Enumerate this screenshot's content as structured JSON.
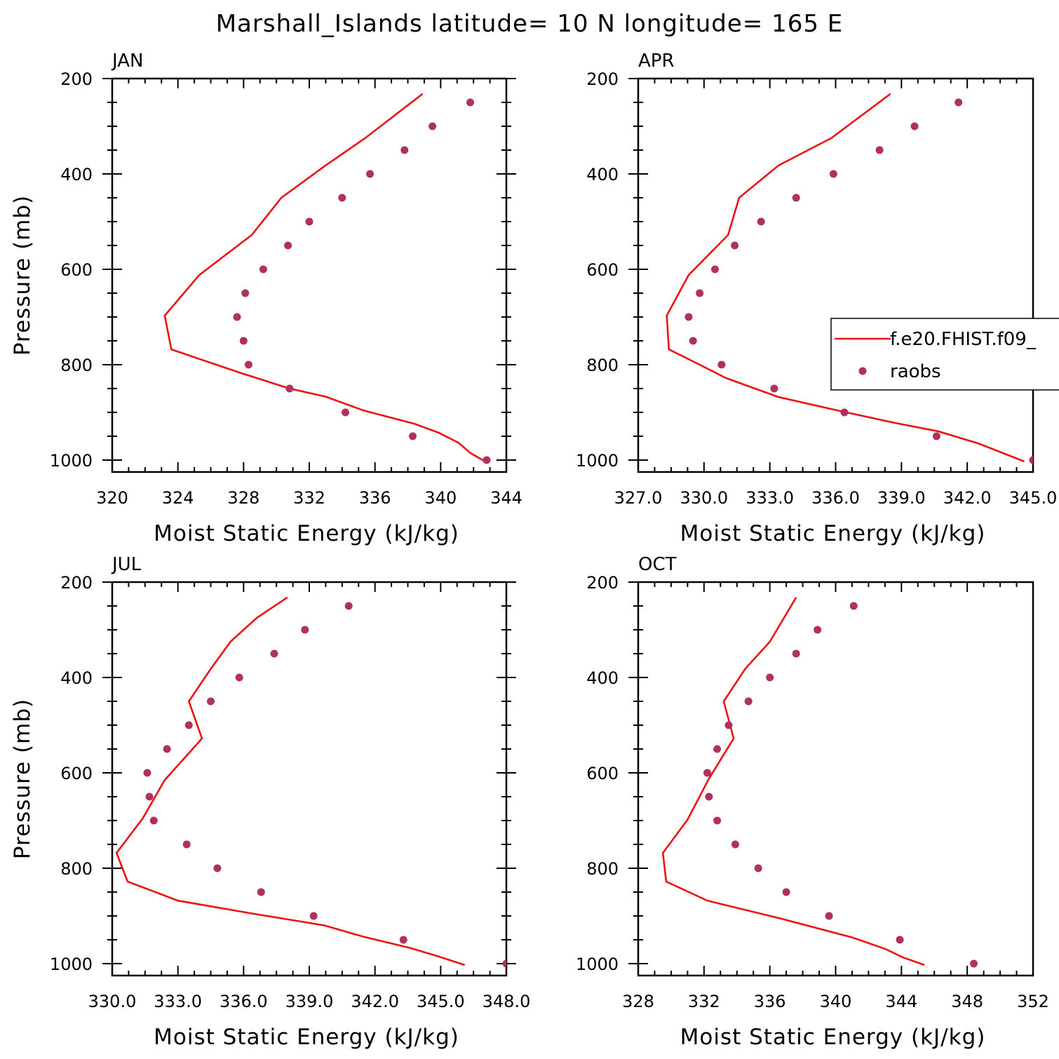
{
  "title": "Marshall_Islands  latitude= 10 N longitude= 165 E",
  "colors": {
    "model": "#ee1111",
    "obs": "#b03060"
  },
  "chart_data": [
    {
      "type": "line",
      "title": "JAN",
      "xlabel": "Moist Static Energy (kJ/kg)",
      "ylabel": "Pressure (mb)",
      "xlim": [
        320,
        344
      ],
      "ylim": [
        1000,
        200
      ],
      "x_ticks": [
        "320",
        "324",
        "328",
        "332",
        "336",
        "340",
        "344"
      ],
      "y_ticks": [
        "200",
        "400",
        "600",
        "800",
        "1000"
      ],
      "series": [
        {
          "name": "f.e20.FHIST.f09_",
          "style": "line",
          "x": [
            338.9,
            335.4,
            333.0,
            330.3,
            328.5,
            325.3,
            323.2,
            323.6,
            327.7,
            330.8,
            333.0,
            335.3,
            338.4,
            339.9,
            341.1,
            341.8,
            342.7
          ],
          "y": [
            232,
            325,
            382,
            450,
            528,
            612,
            697,
            768,
            816,
            850,
            867,
            896,
            924,
            943,
            964,
            985,
            1003
          ]
        },
        {
          "name": "raobs",
          "style": "scatter",
          "x": [
            341.8,
            339.5,
            337.8,
            335.7,
            334.0,
            332.0,
            330.7,
            329.2,
            328.1,
            327.6,
            328.0,
            328.3,
            330.8,
            334.2,
            338.3,
            342.8
          ],
          "y": [
            250,
            300,
            350,
            400,
            450,
            500,
            550,
            600,
            650,
            700,
            750,
            800,
            850,
            900,
            950,
            1000
          ]
        }
      ]
    },
    {
      "type": "line",
      "title": "APR",
      "xlabel": "Moist Static Energy (kJ/kg)",
      "ylabel": "",
      "xlim": [
        327,
        345
      ],
      "ylim": [
        1000,
        200
      ],
      "x_ticks": [
        "327.0",
        "330.0",
        "333.0",
        "336.0",
        "339.0",
        "342.0",
        "345.0"
      ],
      "y_ticks": [
        "200",
        "400",
        "600",
        "800",
        "1000"
      ],
      "legend": {
        "entries": [
          "f.e20.FHIST.f09_",
          "raobs"
        ],
        "position": "right"
      },
      "series": [
        {
          "name": "f.e20.FHIST.f09_",
          "style": "line",
          "x": [
            338.5,
            335.8,
            333.4,
            331.6,
            331.1,
            329.3,
            328.3,
            328.4,
            329.8,
            331.0,
            333.4,
            336.0,
            338.7,
            340.7,
            342.5,
            344.6
          ],
          "y": [
            232,
            325,
            382,
            450,
            528,
            612,
            697,
            768,
            800,
            828,
            868,
            895,
            922,
            940,
            965,
            1003
          ]
        },
        {
          "name": "raobs",
          "style": "scatter",
          "x": [
            341.6,
            339.6,
            338.0,
            335.9,
            334.2,
            332.6,
            331.4,
            330.5,
            329.8,
            329.3,
            329.5,
            330.8,
            333.2,
            336.4,
            340.6,
            345.0
          ],
          "y": [
            250,
            300,
            350,
            400,
            450,
            500,
            550,
            600,
            650,
            700,
            750,
            800,
            850,
            900,
            950,
            1000
          ]
        }
      ]
    },
    {
      "type": "line",
      "title": "JUL",
      "xlabel": "Moist Static Energy (kJ/kg)",
      "ylabel": "Pressure (mb)",
      "xlim": [
        330,
        348
      ],
      "ylim": [
        1000,
        200
      ],
      "x_ticks": [
        "330.0",
        "333.0",
        "336.0",
        "339.0",
        "342.0",
        "345.0",
        "348.0"
      ],
      "y_ticks": [
        "200",
        "400",
        "600",
        "800",
        "1000"
      ],
      "series": [
        {
          "name": "f.e20.FHIST.f09_",
          "style": "line",
          "x": [
            338.0,
            336.6,
            335.4,
            334.5,
            333.5,
            334.1,
            332.4,
            331.4,
            330.2,
            330.7,
            333.0,
            336.4,
            339.7,
            341.5,
            343.6,
            344.9,
            346.1
          ],
          "y": [
            232,
            275,
            325,
            382,
            450,
            528,
            615,
            695,
            768,
            828,
            868,
            895,
            920,
            944,
            967,
            985,
            1003
          ]
        },
        {
          "name": "raobs",
          "style": "scatter",
          "x": [
            340.8,
            338.8,
            337.4,
            335.8,
            334.5,
            333.5,
            332.5,
            331.6,
            331.7,
            331.9,
            333.4,
            334.8,
            336.8,
            339.2,
            343.3,
            348.0
          ],
          "y": [
            250,
            300,
            350,
            400,
            450,
            500,
            550,
            600,
            650,
            700,
            750,
            800,
            850,
            900,
            950,
            1000
          ]
        }
      ]
    },
    {
      "type": "line",
      "title": "OCT",
      "xlabel": "Moist Static Energy (kJ/kg)",
      "ylabel": "",
      "xlim": [
        328,
        352
      ],
      "ylim": [
        1000,
        200
      ],
      "x_ticks": [
        "328",
        "332",
        "336",
        "340",
        "344",
        "348",
        "352"
      ],
      "y_ticks": [
        "200",
        "400",
        "600",
        "800",
        "1000"
      ],
      "series": [
        {
          "name": "f.e20.FHIST.f09_",
          "style": "line",
          "x": [
            337.6,
            336.0,
            334.5,
            333.2,
            333.8,
            332.3,
            331.0,
            329.5,
            329.7,
            332.2,
            336.6,
            341.0,
            343.0,
            344.1,
            345.4
          ],
          "y": [
            232,
            325,
            382,
            450,
            528,
            612,
            698,
            768,
            828,
            868,
            905,
            945,
            969,
            987,
            1003
          ]
        },
        {
          "name": "raobs",
          "style": "scatter",
          "x": [
            341.1,
            338.9,
            337.6,
            336.0,
            334.7,
            333.5,
            332.8,
            332.2,
            332.3,
            332.8,
            333.9,
            335.3,
            337.0,
            339.6,
            343.9,
            348.4
          ],
          "y": [
            250,
            300,
            350,
            400,
            450,
            500,
            550,
            600,
            650,
            700,
            750,
            800,
            850,
            900,
            950,
            1000
          ]
        }
      ]
    }
  ]
}
